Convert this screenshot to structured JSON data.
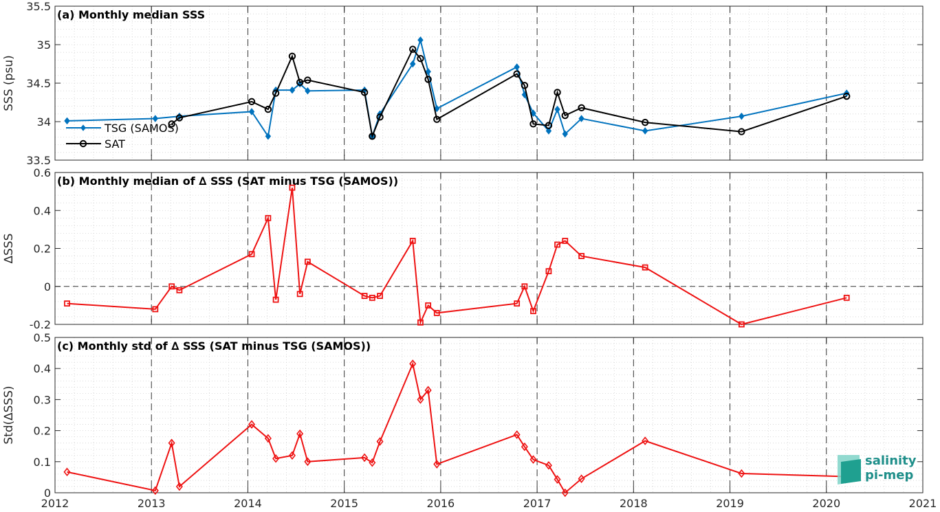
{
  "chart_data": [
    {
      "type": "line",
      "title": "(a) Monthly median SSS",
      "xlabel": "",
      "ylabel": "SSS (psu)",
      "xlim": [
        2012,
        2021
      ],
      "ylim": [
        33.5,
        35.5
      ],
      "yticks": [
        33.5,
        34,
        34.5,
        35,
        35.5
      ],
      "grid": true,
      "legend": "inside-left",
      "series": [
        {
          "name": "TSG (SAMOS)",
          "color": "#0072bd",
          "marker": "diamond",
          "x": [
            2012.125,
            2013.04,
            2013.29,
            2014.04,
            2014.21,
            2014.29,
            2014.46,
            2014.54,
            2014.62,
            2015.21,
            2015.29,
            2015.37,
            2015.71,
            2015.79,
            2015.87,
            2015.96,
            2016.79,
            2016.87,
            2016.96,
            2017.12,
            2017.21,
            2017.29,
            2017.46,
            2018.12,
            2019.12,
            2020.21
          ],
          "values": [
            34.01,
            34.04,
            34.07,
            34.13,
            33.81,
            34.41,
            34.41,
            34.49,
            34.4,
            34.41,
            33.81,
            34.1,
            34.75,
            35.06,
            34.65,
            34.17,
            34.71,
            34.35,
            34.11,
            33.88,
            34.16,
            33.84,
            34.04,
            33.88,
            34.07,
            34.37
          ]
        },
        {
          "name": "SAT",
          "color": "#000000",
          "marker": "circle",
          "x": [
            2013.21,
            2013.29,
            2014.04,
            2014.21,
            2014.29,
            2014.46,
            2014.54,
            2014.62,
            2015.21,
            2015.29,
            2015.37,
            2015.71,
            2015.79,
            2015.87,
            2015.96,
            2016.79,
            2016.87,
            2016.96,
            2017.12,
            2017.21,
            2017.29,
            2017.46,
            2018.12,
            2019.12,
            2020.21
          ],
          "values": [
            33.97,
            34.05,
            34.26,
            34.16,
            34.37,
            34.85,
            34.51,
            34.54,
            34.38,
            33.81,
            34.06,
            34.94,
            34.82,
            34.55,
            34.03,
            34.62,
            34.47,
            33.97,
            33.95,
            34.38,
            34.08,
            34.18,
            33.99,
            33.87,
            34.33
          ]
        }
      ]
    },
    {
      "type": "line",
      "title": "(b) Monthly median of ∆ SSS (SAT minus TSG (SAMOS))",
      "xlabel": "",
      "ylabel": "∆SSS",
      "xlim": [
        2012,
        2021
      ],
      "ylim": [
        -0.2,
        0.6
      ],
      "yticks": [
        -0.2,
        0,
        0.2,
        0.4,
        0.6
      ],
      "ytick_labels": [
        "-0.2",
        "0",
        "0.2",
        "0.4",
        "0.6"
      ],
      "grid": true,
      "zero_line": true,
      "series": [
        {
          "name": "",
          "color": "#ee1111",
          "marker": "square",
          "x": [
            2012.125,
            2013.04,
            2013.21,
            2013.29,
            2014.04,
            2014.21,
            2014.29,
            2014.46,
            2014.54,
            2014.62,
            2015.21,
            2015.29,
            2015.37,
            2015.71,
            2015.79,
            2015.87,
            2015.96,
            2016.79,
            2016.87,
            2016.96,
            2017.12,
            2017.21,
            2017.29,
            2017.46,
            2018.12,
            2019.12,
            2020.21
          ],
          "values": [
            -0.09,
            -0.12,
            0.0,
            -0.02,
            0.17,
            0.36,
            -0.07,
            0.52,
            -0.04,
            0.13,
            -0.05,
            -0.06,
            -0.05,
            0.24,
            -0.19,
            -0.1,
            -0.14,
            -0.09,
            0.0,
            -0.13,
            0.08,
            0.22,
            0.24,
            0.16,
            0.1,
            -0.2,
            -0.06
          ]
        }
      ]
    },
    {
      "type": "line",
      "title": "(c) Monthly std of ∆ SSS (SAT minus TSG (SAMOS))",
      "xlabel": "",
      "ylabel": "Std(∆SSS)",
      "xlim": [
        2012,
        2021
      ],
      "ylim": [
        0,
        0.5
      ],
      "yticks": [
        0,
        0.1,
        0.2,
        0.3,
        0.4,
        0.5
      ],
      "ytick_labels": [
        "0",
        "0.1",
        "0.2",
        "0.3",
        "0.4",
        "0.5"
      ],
      "grid": true,
      "series": [
        {
          "name": "",
          "color": "#ee1111",
          "marker": "diamond",
          "x": [
            2012.125,
            2013.04,
            2013.21,
            2013.29,
            2014.04,
            2014.21,
            2014.29,
            2014.46,
            2014.54,
            2014.62,
            2015.21,
            2015.29,
            2015.37,
            2015.71,
            2015.79,
            2015.87,
            2015.96,
            2016.79,
            2016.87,
            2016.96,
            2017.12,
            2017.21,
            2017.29,
            2017.46,
            2018.12,
            2019.12,
            2020.21
          ],
          "values": [
            0.067,
            0.007,
            0.16,
            0.02,
            0.22,
            0.175,
            0.11,
            0.12,
            0.19,
            0.1,
            0.113,
            0.097,
            0.165,
            0.415,
            0.3,
            0.33,
            0.092,
            0.187,
            0.148,
            0.107,
            0.088,
            0.043,
            0.0,
            0.045,
            0.167,
            0.062,
            0.052
          ]
        }
      ]
    }
  ],
  "xticks": [
    2012,
    2013,
    2014,
    2015,
    2016,
    2017,
    2018,
    2019,
    2020,
    2021
  ],
  "logo": {
    "line1": "salinity",
    "line2": "pi-mep"
  }
}
